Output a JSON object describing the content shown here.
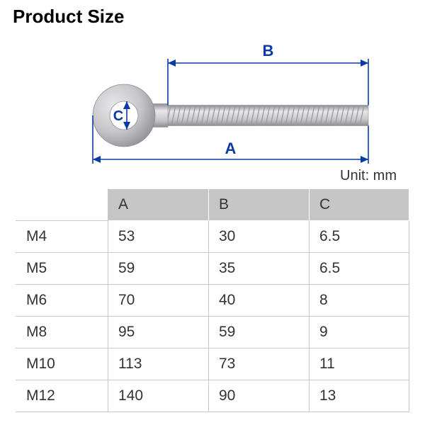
{
  "title": "Product Size",
  "unit_label": "Unit: mm",
  "diagram": {
    "label_A": "A",
    "label_B": "B",
    "label_C": "C",
    "colors": {
      "dim_line": "#0a3aa8",
      "dim_text": "#0a3aa8",
      "bolt_fill_light": "#e8e8ea",
      "bolt_fill_mid": "#c7c7cb",
      "bolt_fill_dark": "#8c8c92",
      "hole_fill": "#ffffff",
      "thread_stroke": "#9a9aa0"
    }
  },
  "table": {
    "columns": [
      "",
      "A",
      "B",
      "C"
    ],
    "rows": [
      [
        "M4",
        "53",
        "30",
        "6.5"
      ],
      [
        "M5",
        "59",
        "35",
        "6.5"
      ],
      [
        "M6",
        "70",
        "40",
        "8"
      ],
      [
        "M8",
        "95",
        "59",
        "9"
      ],
      [
        "M10",
        "113",
        "73",
        "11"
      ],
      [
        "M12",
        "140",
        "90",
        "13"
      ]
    ]
  }
}
